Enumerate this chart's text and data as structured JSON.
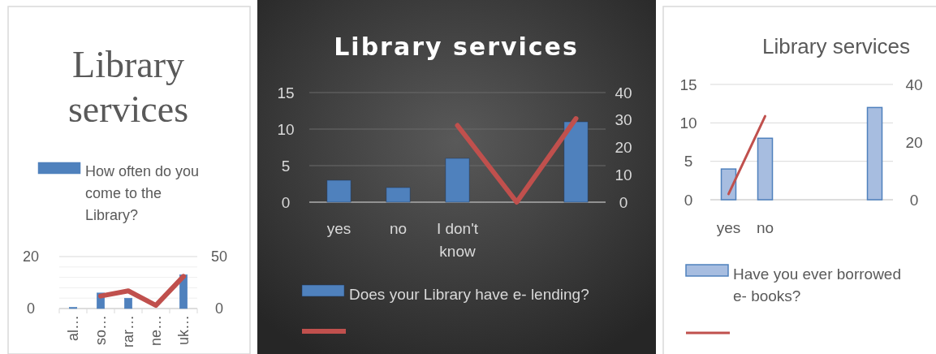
{
  "chart_data": [
    {
      "type": "bar",
      "title": "Library services",
      "categories": [
        "al…",
        "so…",
        "rar…",
        "ne…",
        "uk…"
      ],
      "series": [
        {
          "name": "How often do you come to the Library?",
          "color": "#4f81bd",
          "values": [
            0.5,
            6,
            4,
            0,
            13
          ]
        },
        {
          "type": "line",
          "axis": "y2",
          "color": "#c0504d",
          "values": [
            null,
            12,
            17,
            3,
            31
          ]
        }
      ],
      "ylim": [
        0,
        20
      ],
      "yticks": [
        0,
        {
          "value": 4,
          "label": null
        },
        {
          "value": 8,
          "label": null
        },
        {
          "value": 12,
          "label": null
        },
        {
          "value": 16,
          "label": null
        },
        20
      ],
      "y2lim": [
        0,
        50
      ],
      "y2ticks": [
        0,
        50
      ],
      "grid": "y",
      "legend": "top"
    },
    {
      "type": "bar",
      "title": "Library services",
      "categories": [
        "yes",
        "no",
        "I don't know",
        null,
        null
      ],
      "series": [
        {
          "name": "Does your Library have e- lending?",
          "color": "#4f81bd",
          "values": [
            3,
            2,
            6,
            0,
            11
          ]
        },
        {
          "type": "line",
          "axis": "y2",
          "color": "#c0504d",
          "values": [
            null,
            null,
            28,
            0,
            30.5
          ]
        }
      ],
      "ylim": [
        0,
        15
      ],
      "yticks": [
        0,
        5,
        10,
        15
      ],
      "y2lim": [
        0,
        40
      ],
      "y2ticks": [
        0,
        10,
        20,
        30,
        40
      ],
      "grid": "y",
      "legend": "bottom"
    },
    {
      "type": "bar",
      "title": "Library services",
      "categories": [
        "yes",
        "no",
        null,
        null,
        null
      ],
      "series": [
        {
          "name": "Have you ever borrowed e- books?",
          "color": "#a7bde0",
          "values": [
            4,
            8,
            null,
            null,
            12
          ]
        },
        {
          "type": "line",
          "axis": "y2",
          "color": "#c0504d",
          "values": [
            2,
            29,
            null,
            null,
            null
          ]
        }
      ],
      "ylim": [
        0,
        15
      ],
      "yticks": [
        0,
        5,
        10,
        15
      ],
      "y2lim": [
        0,
        40
      ],
      "y2ticks": [
        0,
        20,
        40
      ],
      "grid": "y",
      "legend": "bottom"
    }
  ]
}
